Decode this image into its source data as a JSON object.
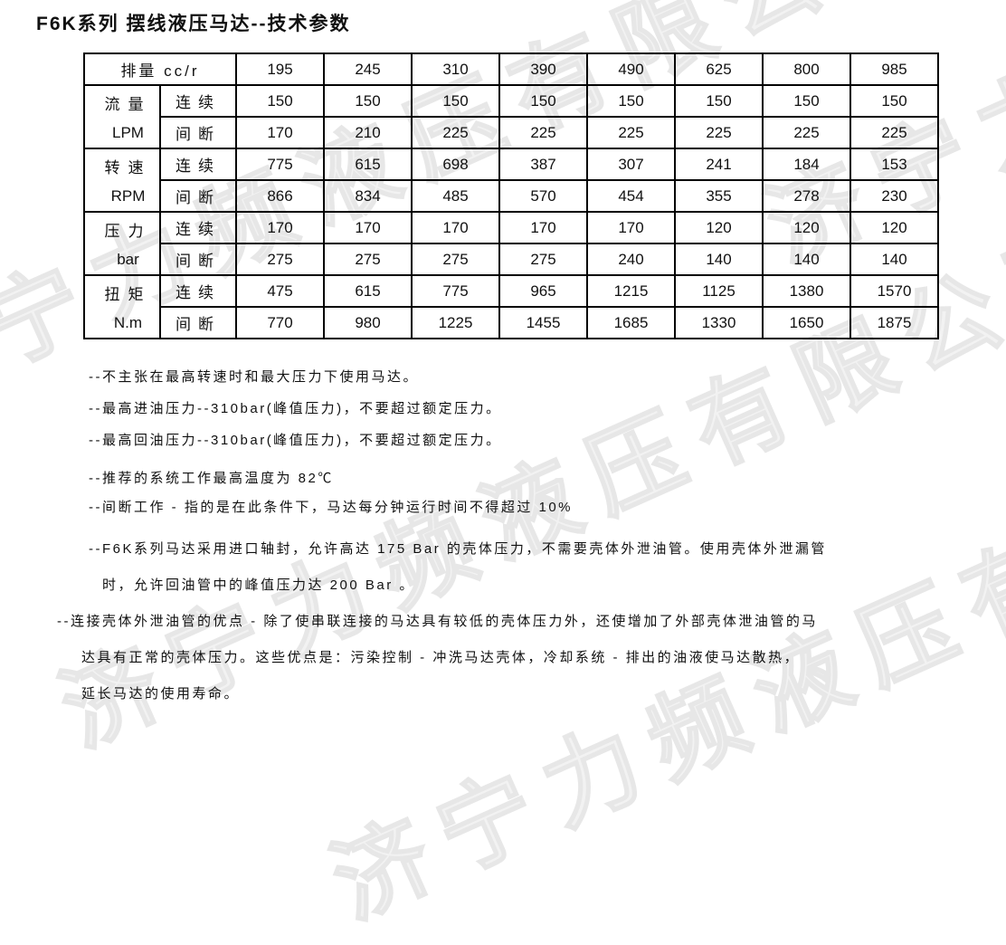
{
  "title": "F6K系列 摆线液压马达--技术参数",
  "watermark": {
    "text": "济宁力频液压有限公司"
  },
  "table": {
    "header": {
      "label": "排量 cc/r",
      "values": [
        "195",
        "245",
        "310",
        "390",
        "490",
        "625",
        "800",
        "985"
      ]
    },
    "groups": [
      {
        "name": "流量",
        "unit": "LPM",
        "rows": [
          {
            "mode": "连续",
            "values": [
              "150",
              "150",
              "150",
              "150",
              "150",
              "150",
              "150",
              "150"
            ]
          },
          {
            "mode": "间断",
            "values": [
              "170",
              "210",
              "225",
              "225",
              "225",
              "225",
              "225",
              "225"
            ]
          }
        ]
      },
      {
        "name": "转速",
        "unit": "RPM",
        "rows": [
          {
            "mode": "连续",
            "values": [
              "775",
              "615",
              "698",
              "387",
              "307",
              "241",
              "184",
              "153"
            ]
          },
          {
            "mode": "间断",
            "values": [
              "866",
              "834",
              "485",
              "570",
              "454",
              "355",
              "278",
              "230"
            ]
          }
        ]
      },
      {
        "name": "压力",
        "unit": "bar",
        "rows": [
          {
            "mode": "连续",
            "values": [
              "170",
              "170",
              "170",
              "170",
              "170",
              "120",
              "120",
              "120"
            ]
          },
          {
            "mode": "间断",
            "values": [
              "275",
              "275",
              "275",
              "275",
              "240",
              "140",
              "140",
              "140"
            ]
          }
        ]
      },
      {
        "name": "扭矩",
        "unit": "N.m",
        "rows": [
          {
            "mode": "连续",
            "values": [
              "475",
              "615",
              "775",
              "965",
              "1215",
              "1125",
              "1380",
              "1570"
            ]
          },
          {
            "mode": "间断",
            "values": [
              "770",
              "980",
              "1225",
              "1455",
              "1685",
              "1330",
              "1650",
              "1875"
            ]
          }
        ]
      }
    ]
  },
  "notes": {
    "lines": [
      "--不主张在最高转速时和最大压力下使用马达。",
      "--最高进油压力--310bar(峰值压力)，不要超过额定压力。",
      "--最高回油压力--310bar(峰值压力)，不要超过额定压力。",
      "--推荐的系统工作最高温度为 82℃",
      "--间断工作 - 指的是在此条件下，马达每分钟运行时间不得超过 10%",
      "--F6K系列马达采用进口轴封，允许高达 175 Bar 的壳体压力，不需要壳体外泄油管。使用壳体外泄漏管",
      "时，允许回油管中的峰值压力达 200 Bar 。",
      "--连接壳体外泄油管的优点 - 除了使串联连接的马达具有较低的壳体压力外，还使增加了外部壳体泄油管的马",
      "达具有正常的壳体压力。这些优点是：污染控制 - 冲洗马达壳体，冷却系统 - 排出的油液使马达散热，",
      "延长马达的使用寿命。"
    ]
  }
}
